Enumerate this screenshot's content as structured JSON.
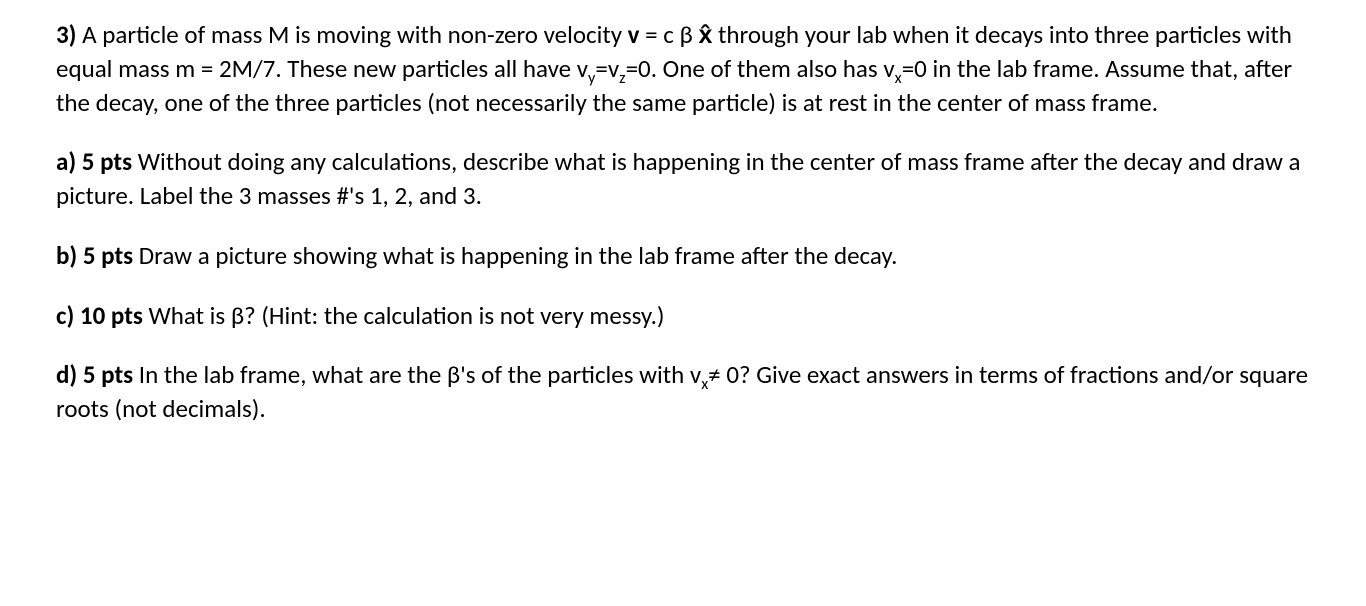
{
  "problem": {
    "number": "3)",
    "intro_1": "A particle of mass M is moving with non-zero velocity ",
    "vel_prefix": "v",
    "equals": " = c β ",
    "xhat": "x̂",
    "intro_2": " through your lab when it decays into three particles with equal mass m = 2M/7.  These new particles all have v",
    "sub_y": "y",
    "eqv": "=v",
    "sub_z": "z",
    "eq0": "=0. One of them also has v",
    "sub_x": "x",
    "eq0b": "=0 in the lab frame.  Assume that, after the decay, one of the three particles (not necessarily the same particle) is at rest in the center of mass frame."
  },
  "a": {
    "label": "a) 5 pts",
    "text": " Without doing any calculations, describe what is happening in the center of mass frame after the decay and draw a picture. Label the 3 masses #'s 1, 2, and 3."
  },
  "b": {
    "label": "b) 5 pts",
    "text": " Draw a picture showing what is happening in the lab frame after the decay."
  },
  "c": {
    "label": "c) 10 pts",
    "text": " What is β? (Hint: the calculation is not very messy.)"
  },
  "d": {
    "label": "d) 5 pts",
    "text_1": " In the lab frame, what are the β's of the particles with v",
    "sub_x": "x",
    "text_2": "≠ 0?  Give exact answers in terms of fractions and/or square roots (not decimals)."
  }
}
